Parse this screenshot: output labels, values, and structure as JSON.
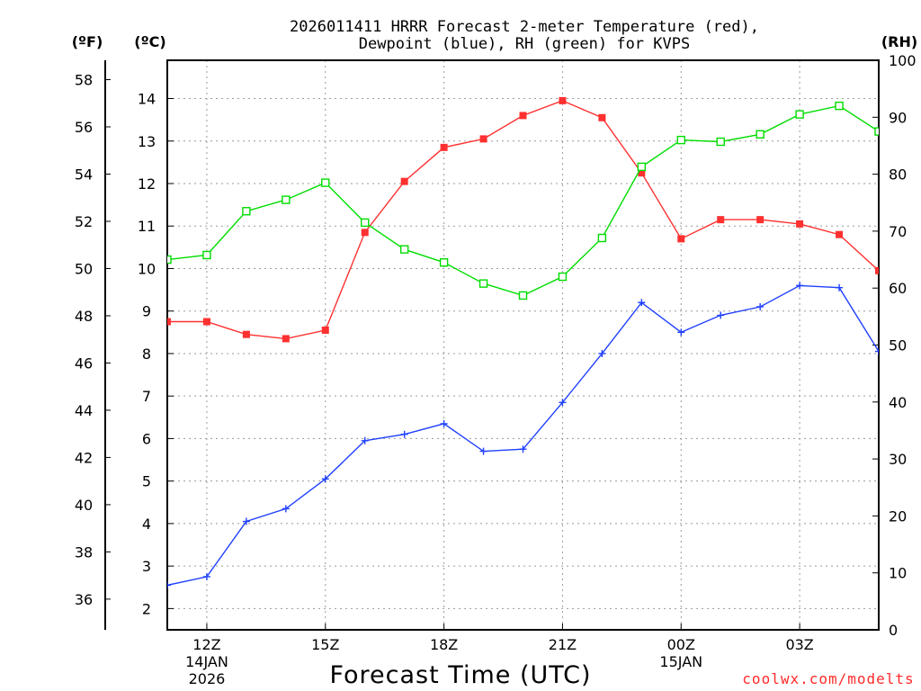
{
  "chart_data": {
    "type": "line",
    "title_lines": [
      "2026011411 HRRR Forecast 2-meter Temperature (red),",
      "Dewpoint (blue), RH (green) for KVPS"
    ],
    "xlabel": "Forecast Time (UTC)",
    "credit": "coolwx.com/modelts",
    "units": {
      "fahrenheit": "(ºF)",
      "celsius": "(ºC)",
      "rh": "(RH)"
    },
    "x": [
      11,
      12,
      13,
      14,
      15,
      16,
      17,
      18,
      19,
      20,
      21,
      22,
      23,
      24,
      25,
      26,
      27,
      28,
      29
    ],
    "xlim": [
      11,
      29
    ],
    "x_ticks": [
      {
        "x": 12,
        "label": "12Z",
        "date1": "14JAN",
        "date2": "2026"
      },
      {
        "x": 15,
        "label": "15Z"
      },
      {
        "x": 18,
        "label": "18Z"
      },
      {
        "x": 21,
        "label": "21Z"
      },
      {
        "x": 24,
        "label": "00Z",
        "date1": "15JAN"
      },
      {
        "x": 27,
        "label": "03Z"
      }
    ],
    "ylim_c": [
      1.5,
      14.9
    ],
    "ylim_rh": [
      0,
      100
    ],
    "celsius_ticks": [
      "2",
      "3",
      "4",
      "5",
      "6",
      "7",
      "8",
      "9",
      "10",
      "11",
      "12",
      "13",
      "14"
    ],
    "fahrenheit_ticks": [
      "36",
      "38",
      "40",
      "42",
      "44",
      "46",
      "48",
      "50",
      "52",
      "54",
      "56",
      "58"
    ],
    "rh_ticks": [
      "0",
      "10",
      "20",
      "30",
      "40",
      "50",
      "60",
      "70",
      "80",
      "90",
      "100"
    ],
    "series": [
      {
        "name": "2-meter Temperature",
        "axis": "celsius",
        "color": "#ff3030",
        "marker": "filled-square",
        "values": [
          8.75,
          8.75,
          8.45,
          8.35,
          8.55,
          10.85,
          12.05,
          12.85,
          13.05,
          13.6,
          13.95,
          13.55,
          12.25,
          10.7,
          11.15,
          11.15,
          11.05,
          10.8,
          9.95
        ]
      },
      {
        "name": "Dewpoint",
        "axis": "celsius",
        "color": "#2040ff",
        "marker": "plus",
        "values": [
          2.55,
          2.75,
          4.05,
          4.35,
          5.05,
          5.95,
          6.1,
          6.35,
          5.7,
          5.75,
          6.85,
          8.0,
          9.2,
          8.5,
          8.9,
          9.1,
          9.6,
          9.55,
          8.05
        ]
      },
      {
        "name": "Relative Humidity",
        "axis": "rh",
        "color": "#00dd00",
        "marker": "open-square",
        "values": [
          65,
          65.8,
          73.5,
          75.5,
          78.5,
          71.5,
          66.8,
          64.5,
          60.8,
          58.7,
          62,
          68.8,
          81.3,
          86,
          85.7,
          87,
          90.5,
          92,
          87.5
        ]
      }
    ]
  }
}
